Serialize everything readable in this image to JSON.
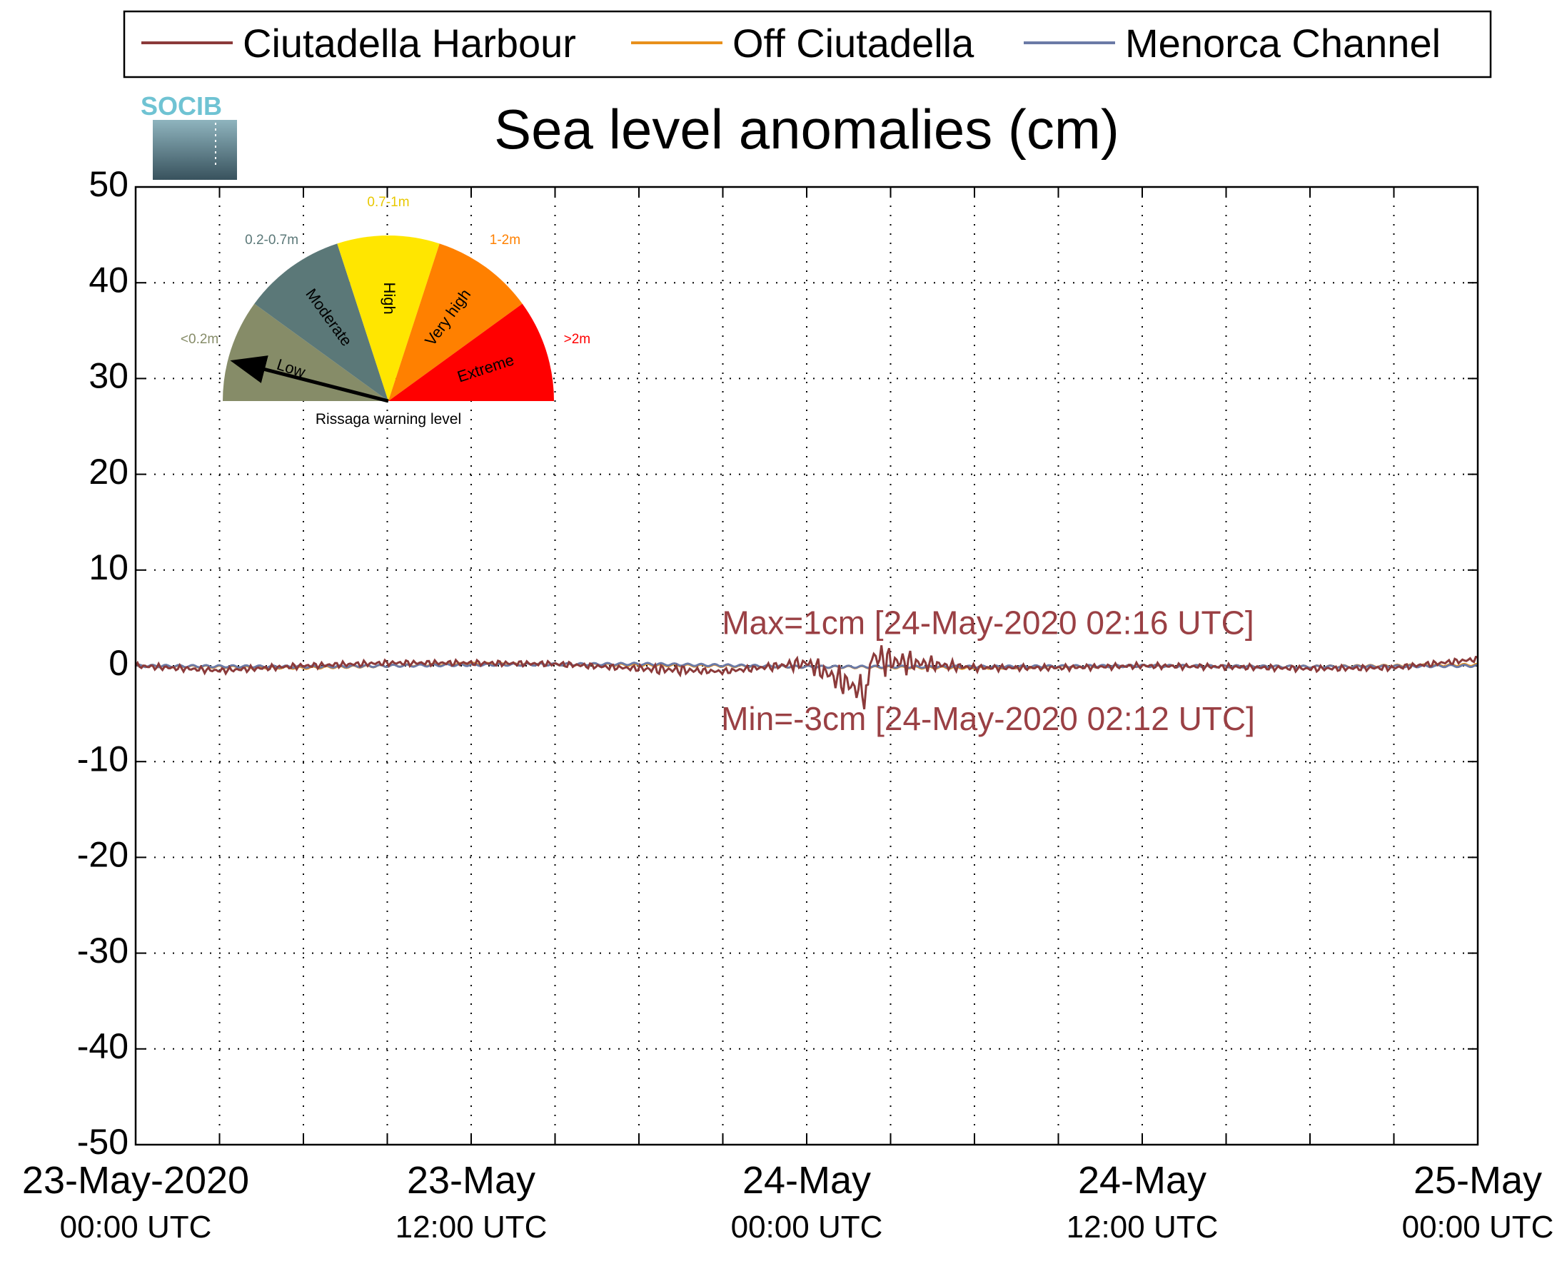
{
  "chart_data": {
    "type": "line",
    "title": "Sea level anomalies (cm)",
    "ylim": [
      -50,
      50
    ],
    "yticks": [
      -50,
      -40,
      -30,
      -20,
      -10,
      0,
      10,
      20,
      30,
      40,
      50
    ],
    "xrange": [
      "2020-05-23 00:00",
      "2020-05-25 00:00"
    ],
    "xtick_labels": [
      {
        "date": "23-May-2020",
        "time": "00:00 UTC"
      },
      {
        "date": "23-May",
        "time": "12:00 UTC"
      },
      {
        "date": "24-May",
        "time": "00:00 UTC"
      },
      {
        "date": "24-May",
        "time": "12:00 UTC"
      },
      {
        "date": "25-May",
        "time": "00:00 UTC"
      }
    ],
    "grid": true,
    "legend_position": "top",
    "series": [
      {
        "name": "Ciutadella Harbour",
        "color": "#8b3a3a",
        "x": [
          "2020-05-23 00:00",
          "2020-05-23 03:00",
          "2020-05-23 06:00",
          "2020-05-23 09:00",
          "2020-05-23 12:00",
          "2020-05-23 15:00",
          "2020-05-23 18:00",
          "2020-05-23 21:00",
          "2020-05-24 00:00",
          "2020-05-24 02:12",
          "2020-05-24 02:16",
          "2020-05-24 03:00",
          "2020-05-24 06:00",
          "2020-05-24 09:00",
          "2020-05-24 12:00",
          "2020-05-24 15:00",
          "2020-05-24 18:00",
          "2020-05-24 21:00",
          "2020-05-25 00:00"
        ],
        "y": [
          0,
          -0.5,
          0,
          0.3,
          0.3,
          0.2,
          -0.3,
          -0.6,
          0.3,
          -3,
          1,
          0.5,
          -0.2,
          -0.2,
          0,
          -0.1,
          -0.3,
          -0.2,
          0.7
        ]
      },
      {
        "name": "Off Ciutadella",
        "color": "#e8901c",
        "x": [
          "2020-05-23 00:00",
          "2020-05-23 06:00",
          "2020-05-23 12:00",
          "2020-05-23 18:00",
          "2020-05-24 00:00",
          "2020-05-24 06:00",
          "2020-05-24 12:00",
          "2020-05-24 18:00",
          "2020-05-25 00:00"
        ],
        "y": [
          0,
          -0.2,
          0.2,
          0.1,
          -0.1,
          -0.2,
          0,
          -0.1,
          0.1
        ]
      },
      {
        "name": "Menorca Channel",
        "color": "#6b7aa6",
        "x": [
          "2020-05-23 00:00",
          "2020-05-23 06:00",
          "2020-05-23 12:00",
          "2020-05-23 18:00",
          "2020-05-24 00:00",
          "2020-05-24 06:00",
          "2020-05-24 12:00",
          "2020-05-24 18:00",
          "2020-05-25 00:00"
        ],
        "y": [
          0,
          -0.1,
          0.1,
          0.2,
          -0.1,
          -0.1,
          0,
          -0.1,
          0
        ]
      }
    ],
    "annotations": [
      {
        "text": "Max=1cm [24-May-2020 02:16 UTC]",
        "x": "2020-05-24 02:16",
        "y": 4.5
      },
      {
        "text": "Min=-3cm [24-May-2020 02:12 UTC]",
        "x": "2020-05-24 02:12",
        "y": -5.5
      }
    ]
  },
  "logo": {
    "text": "SOCIB"
  },
  "gauge": {
    "caption": "Rissaga warning level",
    "current_level": "Low",
    "segments": [
      {
        "category": "Low",
        "range": "<0.2m",
        "color": "#868c68",
        "label_color": "#868c68"
      },
      {
        "category": "Moderate",
        "range": "0.2-0.7m",
        "color": "#5b7878",
        "label_color": "#5b7878"
      },
      {
        "category": "High",
        "range": "0.7-1m",
        "color": "#ffe600",
        "label_color": "#e8c800"
      },
      {
        "category": "Very high",
        "range": "1-2m",
        "color": "#ff8000",
        "label_color": "#ff8000"
      },
      {
        "category": "Extreme",
        "range": ">2m",
        "color": "#ff0000",
        "label_color": "#ff0000"
      }
    ]
  }
}
